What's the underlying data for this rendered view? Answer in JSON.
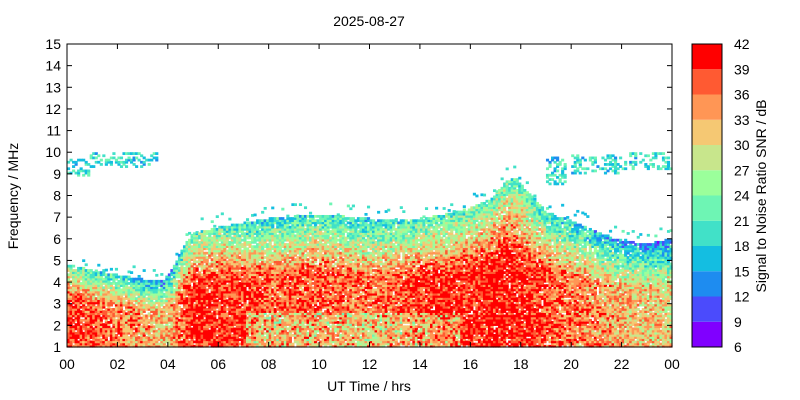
{
  "chart_data": {
    "type": "heatmap",
    "title": "2025-08-27",
    "xlabel": "UT Time / hrs",
    "ylabel": "Frequency / MHz",
    "colorbar_label": "Signal to Noise Ratio SNR / dB",
    "xlim": [
      0,
      24
    ],
    "ylim": [
      1,
      15
    ],
    "x_ticks": [
      "00",
      "02",
      "04",
      "06",
      "08",
      "10",
      "12",
      "14",
      "16",
      "18",
      "20",
      "22",
      "00"
    ],
    "y_ticks": [
      1,
      2,
      3,
      4,
      5,
      6,
      7,
      8,
      9,
      10,
      11,
      12,
      13,
      14,
      15
    ],
    "colorbar_ticks": [
      6,
      9,
      12,
      15,
      18,
      21,
      24,
      27,
      30,
      33,
      36,
      39,
      42
    ],
    "colorbar_levels": [
      {
        "range": [
          6,
          9
        ],
        "color": "#8000ff"
      },
      {
        "range": [
          9,
          12
        ],
        "color": "#4b4bfc"
      },
      {
        "range": [
          12,
          15
        ],
        "color": "#1e8cf0"
      },
      {
        "range": [
          15,
          18
        ],
        "color": "#14bee1"
      },
      {
        "range": [
          18,
          21
        ],
        "color": "#41e1c8"
      },
      {
        "range": [
          21,
          24
        ],
        "color": "#6ef5b4"
      },
      {
        "range": [
          24,
          27
        ],
        "color": "#9bff9b"
      },
      {
        "range": [
          27,
          30
        ],
        "color": "#c8e68c"
      },
      {
        "range": [
          30,
          33
        ],
        "color": "#f5c873"
      },
      {
        "range": [
          33,
          36
        ],
        "color": "#ff9655"
      },
      {
        "range": [
          36,
          39
        ],
        "color": "#ff5a32"
      },
      {
        "range": [
          39,
          42
        ],
        "color": "#ff0000"
      }
    ],
    "upper_envelope_mhz": {
      "x": [
        0,
        1,
        2,
        3,
        3.8,
        4.2,
        4.6,
        5,
        6,
        7,
        8,
        9,
        10,
        11,
        12,
        13,
        14,
        15,
        16,
        16.8,
        17.4,
        17.8,
        18.2,
        18.6,
        19,
        20,
        21,
        22,
        23,
        24
      ],
      "y": [
        4.8,
        4.5,
        4.3,
        4.1,
        4.0,
        4.6,
        5.6,
        6.2,
        6.5,
        6.7,
        6.9,
        7.0,
        7.1,
        7.0,
        6.9,
        6.8,
        6.9,
        7.1,
        7.4,
        7.8,
        8.6,
        8.8,
        8.2,
        7.8,
        7.2,
        6.8,
        6.3,
        5.9,
        5.7,
        6.0
      ]
    },
    "dense_core_snr_db": {
      "x": [
        0,
        2,
        4,
        5,
        6,
        8,
        10,
        12,
        14,
        16,
        17.5,
        19,
        20,
        22,
        24
      ],
      "y": [
        40,
        36,
        32,
        41,
        40,
        37,
        38,
        36,
        39,
        40,
        41,
        38,
        36,
        33,
        31
      ]
    },
    "sporadic_band_mhz": {
      "segments": [
        {
          "x": [
            0,
            0.8
          ],
          "y": [
            8.9,
            9.6
          ]
        },
        {
          "x": [
            0.9,
            3.6
          ],
          "y": [
            9.3,
            9.9
          ]
        },
        {
          "x": [
            19.0,
            19.8
          ],
          "y": [
            8.5,
            9.7
          ]
        },
        {
          "x": [
            20.0,
            22.2
          ],
          "y": [
            9.0,
            9.8
          ]
        },
        {
          "x": [
            22.3,
            24
          ],
          "y": [
            9.2,
            9.9
          ]
        }
      ]
    },
    "grid": false
  }
}
